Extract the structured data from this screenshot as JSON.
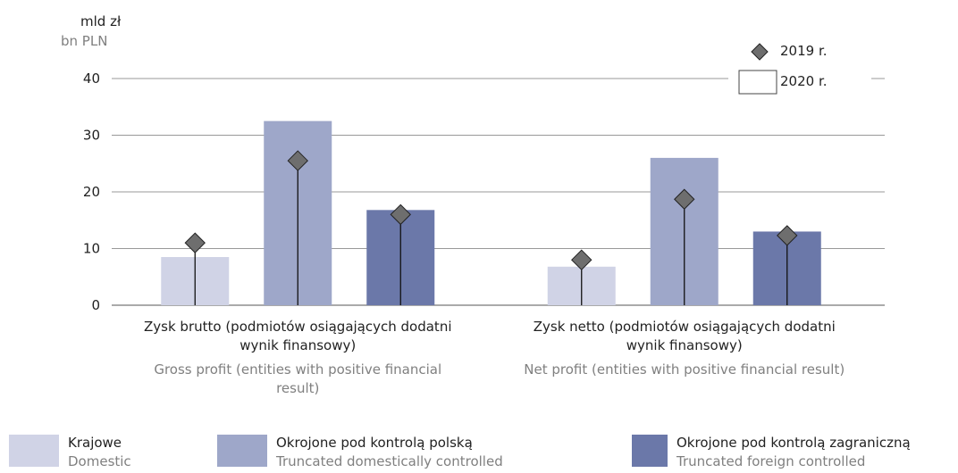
{
  "chart_data": {
    "type": "bar",
    "y_label": "mld zł",
    "y_label_en": "bn PLN",
    "categories": [
      "Zysk brutto (podmiotów osiągających dodatni wynik finansowy)",
      "Zysk netto (podmiotów osiągających dodatni wynik finansowy)"
    ],
    "categories_en": [
      "Gross profit (entities with positive financial result)",
      "Net profit (entities with positive financial result)"
    ],
    "series": [
      {
        "name": "Krajowe",
        "name_en": "Domestic",
        "color": "#d0d3e6",
        "values": [
          8.5,
          6.8
        ],
        "values_2019": [
          11,
          8
        ]
      },
      {
        "name": "Okrojone pod kontrolą polską",
        "name_en": "Truncated domestically controlled",
        "color": "#9ea7c9",
        "values": [
          32.5,
          26
        ],
        "values_2019": [
          25.5,
          18.7
        ]
      },
      {
        "name": "Okrojone pod kontrolą zagraniczną",
        "name_en": "Truncated foreign controlled",
        "color": "#6b78a9",
        "values": [
          16.8,
          13
        ],
        "values_2019": [
          16,
          12.3
        ]
      }
    ],
    "marker_legend": {
      "markers": "2019 r.",
      "bars": "2020 r."
    },
    "marker_color": "#6e6e6e",
    "ylim": [
      0,
      40
    ],
    "yticks": [
      0,
      10,
      20,
      30,
      40
    ],
    "grid": true
  }
}
